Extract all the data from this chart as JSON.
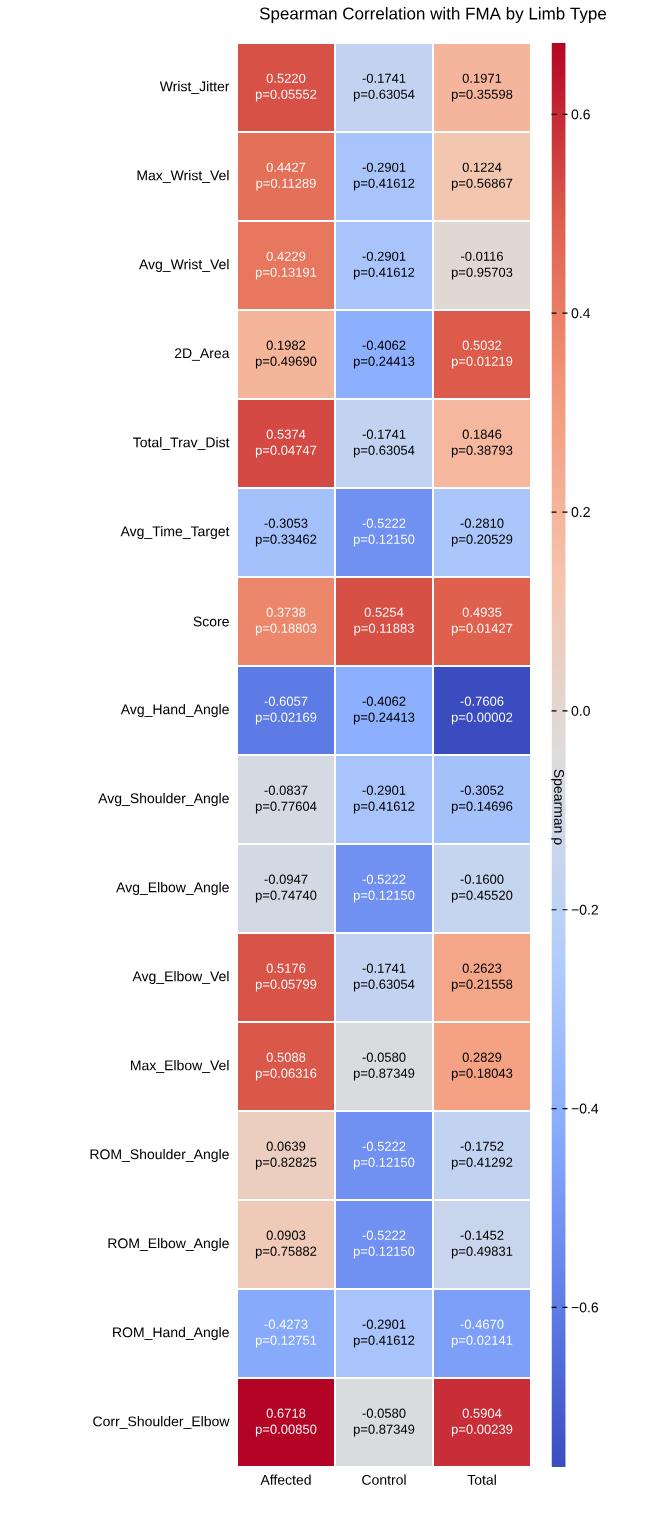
{
  "chart_data": {
    "type": "heatmap",
    "title": "Spearman Correlation with FMA by Limb Type",
    "clabel": "Spearman ρ",
    "categories": [
      "Affected",
      "Control",
      "Total"
    ],
    "y_categories": [
      "Wrist_Jitter",
      "Max_Wrist_Vel",
      "Avg_Wrist_Vel",
      "2D_Area",
      "Total_Trav_Dist",
      "Avg_Time_Target",
      "Score",
      "Avg_Hand_Angle",
      "Avg_Shoulder_Angle",
      "Avg_Elbow_Angle",
      "Avg_Elbow_Vel",
      "Max_Elbow_Vel",
      "ROM_Shoulder_Angle",
      "ROM_Elbow_Angle",
      "ROM_Hand_Angle",
      "Corr_Shoulder_Elbow"
    ],
    "cells": [
      [
        0.522,
        -0.1741,
        0.1971
      ],
      [
        0.4427,
        -0.2901,
        0.1224
      ],
      [
        0.4229,
        -0.2901,
        -0.0116
      ],
      [
        0.1982,
        -0.4062,
        0.5032
      ],
      [
        0.5374,
        -0.1741,
        0.1846
      ],
      [
        -0.3053,
        -0.5222,
        -0.281
      ],
      [
        0.3738,
        0.5254,
        0.4935
      ],
      [
        -0.6057,
        -0.4062,
        -0.7606
      ],
      [
        -0.0837,
        -0.2901,
        -0.3052
      ],
      [
        -0.0947,
        -0.5222,
        -0.16
      ],
      [
        0.5176,
        -0.1741,
        0.2623
      ],
      [
        0.5088,
        -0.058,
        0.2829
      ],
      [
        0.0639,
        -0.5222,
        -0.1752
      ],
      [
        0.0903,
        -0.5222,
        -0.1452
      ],
      [
        -0.4273,
        -0.2901,
        -0.467
      ],
      [
        0.6718,
        -0.058,
        0.5904
      ]
    ],
    "cell_labels": [
      [
        "0.5220 p=0.05552",
        "-0.1741 p=0.63054",
        "0.1971 p=0.35598"
      ],
      [
        "0.4427 p=0.11289",
        "-0.2901 p=0.41612",
        "0.1224 p=0.56867"
      ],
      [
        "0.4229 p=0.13191",
        "-0.2901 p=0.41612",
        "-0.0116 p=0.95703"
      ],
      [
        "0.1982 p=0.49690",
        "-0.4062 p=0.24413",
        "0.5032 p=0.01219"
      ],
      [
        "0.5374 p=0.04747",
        "-0.1741 p=0.63054",
        "0.1846 p=0.38793"
      ],
      [
        "-0.3053 p=0.33462",
        "-0.5222 p=0.12150",
        "-0.2810 p=0.20529"
      ],
      [
        "0.3738 p=0.18803",
        "0.5254 p=0.11883",
        "0.4935 p=0.01427"
      ],
      [
        "-0.6057 p=0.02169",
        "-0.4062 p=0.24413",
        "-0.7606 p=0.00002"
      ],
      [
        "-0.0837 p=0.77604",
        "-0.2901 p=0.41612",
        "-0.3052 p=0.14696"
      ],
      [
        "-0.0947 p=0.74740",
        "-0.5222 p=0.12150",
        "-0.1600 p=0.45520"
      ],
      [
        "0.5176 p=0.05799",
        "-0.1741 p=0.63054",
        "0.2623 p=0.21558"
      ],
      [
        "0.5088 p=0.06316",
        "-0.0580 p=0.87349",
        "0.2829 p=0.18043"
      ],
      [
        "0.0639 p=0.82825",
        "-0.5222 p=0.12150",
        "-0.1752 p=0.41292"
      ],
      [
        "0.0903 p=0.75882",
        "-0.5222 p=0.12150",
        "-0.1452 p=0.49831"
      ],
      [
        "-0.4273 p=0.12751",
        "-0.2901 p=0.41612",
        "-0.4670 p=0.02141"
      ],
      [
        "0.6718 p=0.00850",
        "-0.0580 p=0.87349",
        "0.5904 p=0.00239"
      ]
    ],
    "clim": [
      -0.7606,
      0.6718
    ],
    "cticks": [
      {
        "value": -0.6,
        "label": "−0.6"
      },
      {
        "value": -0.4,
        "label": "−0.4"
      },
      {
        "value": -0.2,
        "label": "−0.2"
      },
      {
        "value": 0.0,
        "label": "0.0"
      },
      {
        "value": 0.2,
        "label": "0.2"
      },
      {
        "value": 0.4,
        "label": "0.4"
      },
      {
        "value": 0.6,
        "label": "0.6"
      }
    ]
  }
}
